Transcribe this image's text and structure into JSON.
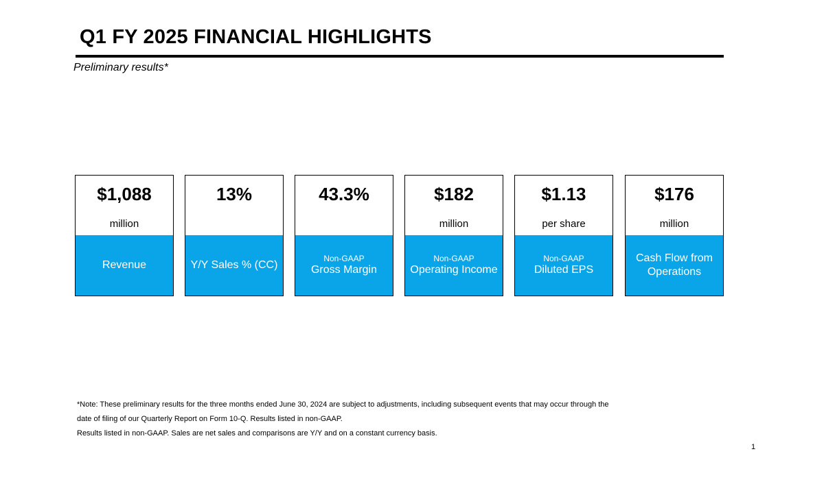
{
  "header": {
    "title": "Q1 FY 2025 FINANCIAL HIGHLIGHTS",
    "subtitle": "Preliminary results*"
  },
  "metrics": [
    {
      "value": "$1,088",
      "unit": "million",
      "qualifier": "",
      "label": "Revenue"
    },
    {
      "value": "13%",
      "unit": "",
      "qualifier": "",
      "label": "Y/Y Sales % (CC)"
    },
    {
      "value": "43.3%",
      "unit": "",
      "qualifier": "Non-GAAP",
      "label": "Gross Margin"
    },
    {
      "value": "$182",
      "unit": "million",
      "qualifier": "Non-GAAP",
      "label": "Operating Income"
    },
    {
      "value": "$1.13",
      "unit": "per share",
      "qualifier": "Non-GAAP",
      "label": "Diluted EPS"
    },
    {
      "value": "$176",
      "unit": "million",
      "qualifier": "",
      "label": "Cash Flow from Operations"
    }
  ],
  "footnotes": {
    "line1": "*Note: These preliminary results for the three months ended June 30, 2024 are subject to adjustments, including subsequent events that may occur through the",
    "line2": "date of filing of our Quarterly Report on Form 10-Q. Results listed in non-GAAP.",
    "line3": "Results listed in non-GAAP. Sales are net sales and comparisons are Y/Y and on a constant currency basis."
  },
  "page_number": "1",
  "colors": {
    "accent_blue": "#0aa5e8",
    "text": "#000000",
    "background": "#ffffff"
  }
}
